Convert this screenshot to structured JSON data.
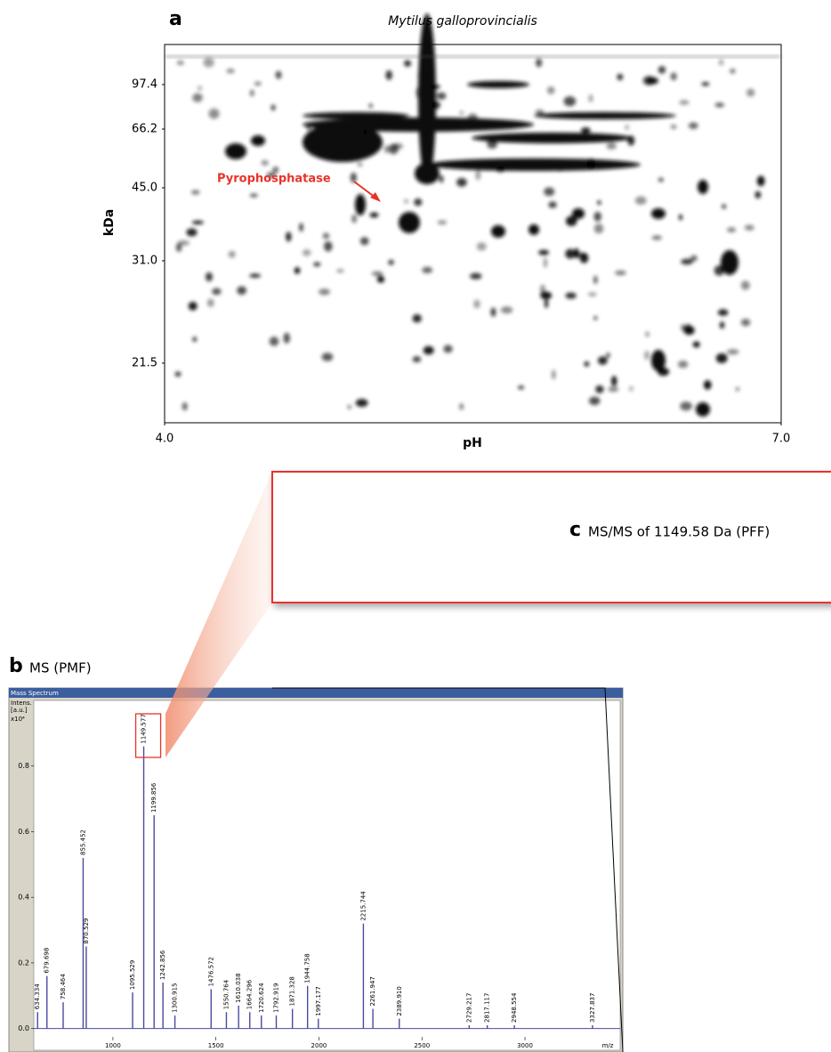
{
  "chart_data": [
    {
      "type": "gel",
      "panel": "a",
      "title": "Mytilus galloprovincialis",
      "x_label": "pH",
      "y_label": "kDa",
      "xlim": [
        4,
        7
      ],
      "xticks": [
        {
          "value": 4,
          "label": "4.0"
        },
        {
          "value": 7,
          "label": "7.0"
        }
      ],
      "yticks": [
        97.4,
        66.2,
        {
          "value": 45,
          "label": "45.0"
        },
        {
          "value": 31,
          "label": "31.0"
        },
        21.5
      ],
      "annotation": "Pyrophosphatase",
      "annotation_color": "#e8332a"
    },
    {
      "type": "spectrum",
      "panel": "b",
      "title": "MS (PMF)",
      "window_title": "Mass Spectrum",
      "y_label": [
        "Intens.",
        "[a.u.]"
      ],
      "y_scale": "x10⁴",
      "x_label": "m/z",
      "color": "#4a4aa0",
      "xlim": [
        616,
        3462
      ],
      "xticks": [
        1000,
        1500,
        2000,
        2500,
        3000
      ],
      "ylim": [
        -0.02,
        1.0
      ],
      "yticks": [
        {
          "value": 0,
          "label": "0.0"
        },
        0.2,
        0.4,
        0.6,
        0.8
      ],
      "x": [
        634.334,
        679.698,
        758.464,
        855.452,
        870.529,
        1095.529,
        1149.577,
        1199.856,
        1242.856,
        1300.915,
        1476.572,
        1550.764,
        1610.038,
        1664.296,
        1720.624,
        1792.919,
        1871.328,
        1944.758,
        1997.177,
        2215.744,
        2261.947,
        2389.91,
        2729.217,
        2817.117,
        2948.554,
        3327.837
      ],
      "peak_labels": [
        "634.334",
        "679.698",
        "758.464",
        "855.452",
        "870.529",
        "1095.529",
        "1149.577",
        "1199.856",
        "1242.856",
        "1300.915",
        "1476.572",
        "1550.764",
        "1610.038",
        "1664.296",
        "1720.624",
        "1792.919",
        "1871.328",
        "1944.758",
        "1997.177",
        "2215.744",
        "2261.947",
        "2389.910",
        "2729.217",
        "2817.117",
        "2948.554",
        "3327.837"
      ],
      "values": [
        0.05,
        0.16,
        0.08,
        0.52,
        0.25,
        0.11,
        0.86,
        0.65,
        0.14,
        0.04,
        0.12,
        0.05,
        0.07,
        0.05,
        0.04,
        0.04,
        0.06,
        0.13,
        0.03,
        0.32,
        0.06,
        0.03,
        0.01,
        0.01,
        0.01,
        0.01
      ],
      "highlight": 6,
      "highlight_color": "#e8332a"
    }
  ],
  "panel_c": {
    "panel": "c",
    "title": "MS/MS of 1149.58 Da (PFF)"
  }
}
